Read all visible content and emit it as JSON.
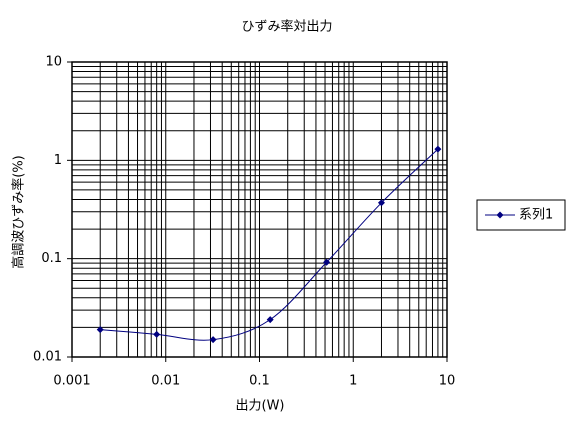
{
  "chart_data": {
    "type": "line",
    "title": "ひずみ率対出力",
    "x_label": "出力(W)",
    "y_label": "高調波ひずみ率(%)",
    "x": [
      0.002,
      0.008,
      0.032,
      0.13,
      0.52,
      2,
      8
    ],
    "series": [
      {
        "name": "系列1",
        "color": "#000080",
        "values": [
          0.019,
          0.017,
          0.015,
          0.024,
          0.092,
          0.37,
          1.3
        ]
      }
    ],
    "xlim": [
      0.001,
      10
    ],
    "ylim": [
      0.01,
      10
    ],
    "xticks": [
      0.001,
      0.01,
      0.1,
      1,
      10
    ],
    "yticks": [
      0.01,
      0.1,
      1,
      10
    ],
    "xscale": "log",
    "yscale": "log",
    "grid": true,
    "legend": "right"
  }
}
